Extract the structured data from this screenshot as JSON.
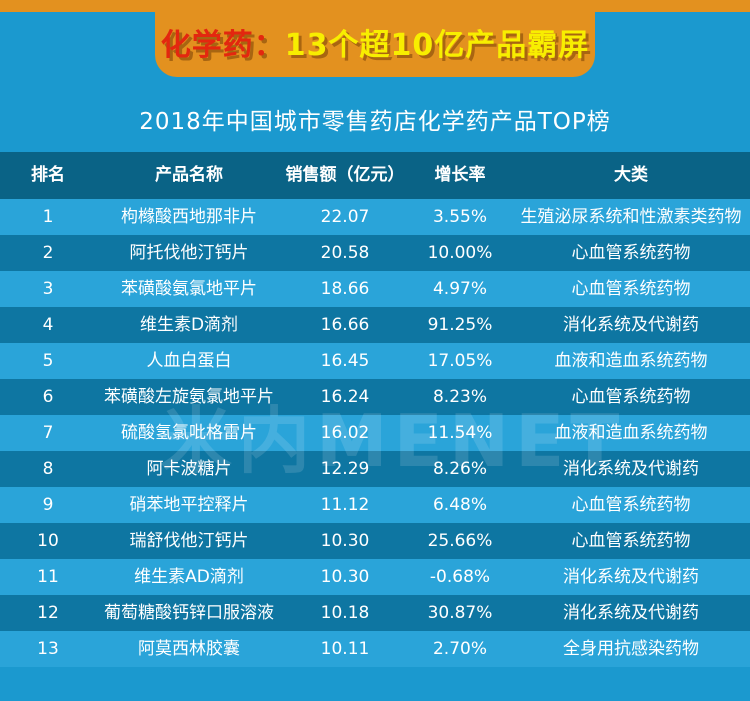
{
  "banner": {
    "prefix": "化学药：",
    "highlight": "13个超10亿产品霸屏"
  },
  "title": "2018年中国城市零售药店化学药产品TOP榜",
  "watermark": "米内MENET",
  "colors": {
    "background_blue": "#1b99cf",
    "banner_orange": "#e3911f",
    "banner_red_text": "#e3270f",
    "banner_yellow_text": "#f8ee00",
    "header_row_blue": "#0a6386",
    "odd_row_blue": "#2aa4d9",
    "even_row_blue": "#0e76a2",
    "text_white": "#ffffff"
  },
  "table": {
    "headers": [
      "排名",
      "产品名称",
      "销售额（亿元）",
      "增长率",
      "大类"
    ],
    "rows": [
      {
        "rank": "1",
        "name": "枸橼酸西地那非片",
        "sales": "22.07",
        "growth": "3.55%",
        "category": "生殖泌尿系统和性激素类药物"
      },
      {
        "rank": "2",
        "name": "阿托伐他汀钙片",
        "sales": "20.58",
        "growth": "10.00%",
        "category": "心血管系统药物"
      },
      {
        "rank": "3",
        "name": "苯磺酸氨氯地平片",
        "sales": "18.66",
        "growth": "4.97%",
        "category": "心血管系统药物"
      },
      {
        "rank": "4",
        "name": "维生素D滴剂",
        "sales": "16.66",
        "growth": "91.25%",
        "category": "消化系统及代谢药"
      },
      {
        "rank": "5",
        "name": "人血白蛋白",
        "sales": "16.45",
        "growth": "17.05%",
        "category": "血液和造血系统药物"
      },
      {
        "rank": "6",
        "name": "苯磺酸左旋氨氯地平片",
        "sales": "16.24",
        "growth": "8.23%",
        "category": "心血管系统药物"
      },
      {
        "rank": "7",
        "name": "硫酸氢氯吡格雷片",
        "sales": "16.02",
        "growth": "11.54%",
        "category": "血液和造血系统药物"
      },
      {
        "rank": "8",
        "name": "阿卡波糖片",
        "sales": "12.29",
        "growth": "8.26%",
        "category": "消化系统及代谢药"
      },
      {
        "rank": "9",
        "name": "硝苯地平控释片",
        "sales": "11.12",
        "growth": "6.48%",
        "category": "心血管系统药物"
      },
      {
        "rank": "10",
        "name": "瑞舒伐他汀钙片",
        "sales": "10.30",
        "growth": "25.66%",
        "category": "心血管系统药物"
      },
      {
        "rank": "11",
        "name": "维生素AD滴剂",
        "sales": "10.30",
        "growth": "-0.68%",
        "category": "消化系统及代谢药"
      },
      {
        "rank": "12",
        "name": "葡萄糖酸钙锌口服溶液",
        "sales": "10.18",
        "growth": "30.87%",
        "category": "消化系统及代谢药"
      },
      {
        "rank": "13",
        "name": "阿莫西林胶囊",
        "sales": "10.11",
        "growth": "2.70%",
        "category": "全身用抗感染药物"
      }
    ]
  },
  "chart_data": {
    "type": "table",
    "title": "2018年中国城市零售药店化学药产品TOP榜",
    "banner": "化学药：13个超10亿产品霸屏",
    "columns": [
      "排名",
      "产品名称",
      "销售额（亿元）",
      "增长率",
      "大类"
    ],
    "rows": [
      [
        1,
        "枸橼酸西地那非片",
        22.07,
        "3.55%",
        "生殖泌尿系统和性激素类药物"
      ],
      [
        2,
        "阿托伐他汀钙片",
        20.58,
        "10.00%",
        "心血管系统药物"
      ],
      [
        3,
        "苯磺酸氨氯地平片",
        18.66,
        "4.97%",
        "心血管系统药物"
      ],
      [
        4,
        "维生素D滴剂",
        16.66,
        "91.25%",
        "消化系统及代谢药"
      ],
      [
        5,
        "人血白蛋白",
        16.45,
        "17.05%",
        "血液和造血系统药物"
      ],
      [
        6,
        "苯磺酸左旋氨氯地平片",
        16.24,
        "8.23%",
        "心血管系统药物"
      ],
      [
        7,
        "硫酸氢氯吡格雷片",
        16.02,
        "11.54%",
        "血液和造血系统药物"
      ],
      [
        8,
        "阿卡波糖片",
        12.29,
        "8.26%",
        "消化系统及代谢药"
      ],
      [
        9,
        "硝苯地平控释片",
        11.12,
        "6.48%",
        "心血管系统药物"
      ],
      [
        10,
        "瑞舒伐他汀钙片",
        10.3,
        "25.66%",
        "心血管系统药物"
      ],
      [
        11,
        "维生素AD滴剂",
        10.3,
        "-0.68%",
        "消化系统及代谢药"
      ],
      [
        12,
        "葡萄糖酸钙锌口服溶液",
        10.18,
        "30.87%",
        "消化系统及代谢药"
      ],
      [
        13,
        "阿莫西林胶囊",
        10.11,
        "2.70%",
        "全身用抗感染药物"
      ]
    ]
  }
}
